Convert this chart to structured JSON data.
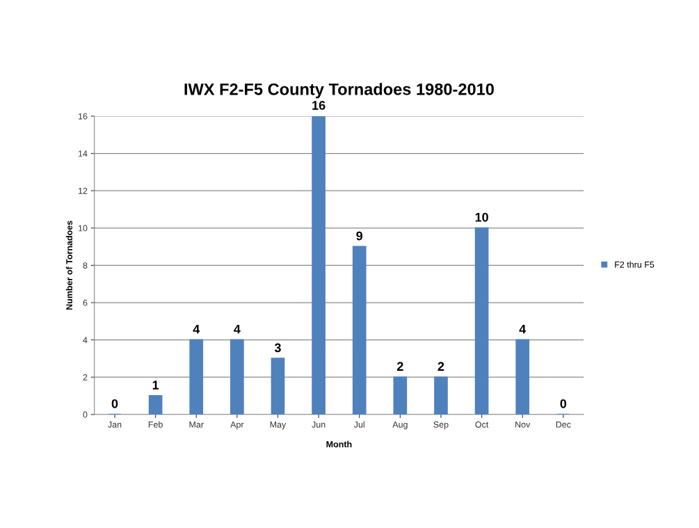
{
  "chart_data": {
    "type": "bar",
    "title": "IWX F2-F5 County Tornadoes 1980-2010",
    "xlabel": "Month",
    "ylabel": "Number of Tornadoes",
    "categories": [
      "Jan",
      "Feb",
      "Mar",
      "Apr",
      "May",
      "Jun",
      "Jul",
      "Aug",
      "Sep",
      "Oct",
      "Nov",
      "Dec"
    ],
    "series": [
      {
        "name": "F2 thru F5",
        "color": "#4f81bd",
        "values": [
          0,
          1,
          4,
          4,
          3,
          16,
          9,
          2,
          2,
          10,
          4,
          0
        ]
      }
    ],
    "ylim": [
      0,
      16
    ],
    "yticks": [
      0,
      2,
      4,
      6,
      8,
      10,
      12,
      14,
      16
    ],
    "grid": "y",
    "legend": "right",
    "data_labels": true
  }
}
